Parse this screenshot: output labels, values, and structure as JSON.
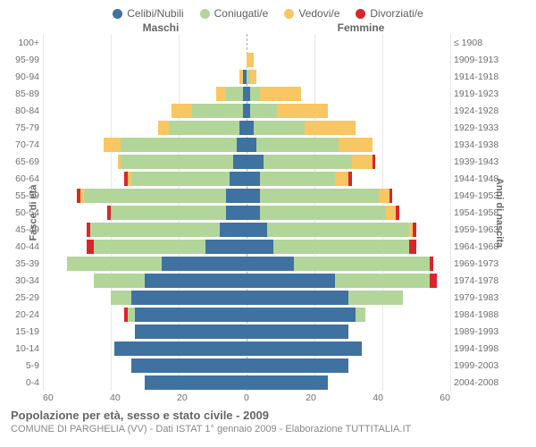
{
  "legend": [
    {
      "label": "Celibi/Nubili",
      "color": "#3f72a0"
    },
    {
      "label": "Coniugati/e",
      "color": "#b2d69a"
    },
    {
      "label": "Vedovi/e",
      "color": "#f8c662"
    },
    {
      "label": "Divorziati/e",
      "color": "#d9262b"
    }
  ],
  "header_male": "Maschi",
  "header_female": "Femmine",
  "y_left_title": "Fasce di età",
  "y_right_title": "Anni di nascita",
  "x_ticks": [
    "60",
    "40",
    "20",
    "0",
    "20",
    "40",
    "60"
  ],
  "scale": {
    "max": 60,
    "px": 228
  },
  "title": "Popolazione per età, sesso e stato civile - 2009",
  "subtitle": "COMUNE DI PARGHELIA (VV) - Dati ISTAT 1° gennaio 2009 - Elaborazione TUTTITALIA.IT",
  "age_bands": [
    "100+",
    "95-99",
    "90-94",
    "85-89",
    "80-84",
    "75-79",
    "70-74",
    "65-69",
    "60-64",
    "55-59",
    "50-54",
    "45-49",
    "40-44",
    "35-39",
    "30-34",
    "25-29",
    "20-24",
    "15-19",
    "10-14",
    "5-9",
    "0-4"
  ],
  "birth_bands": [
    "≤ 1908",
    "1909-1913",
    "1914-1918",
    "1919-1923",
    "1924-1928",
    "1929-1933",
    "1934-1938",
    "1939-1943",
    "1944-1948",
    "1949-1953",
    "1954-1958",
    "1959-1963",
    "1964-1968",
    "1969-1973",
    "1974-1978",
    "1979-1983",
    "1984-1988",
    "1989-1993",
    "1994-1998",
    "1999-2003",
    "2004-2008"
  ],
  "male": [
    {
      "single": 0,
      "married": 0,
      "widowed": 0,
      "divorced": 0
    },
    {
      "single": 0,
      "married": 0,
      "widowed": 0,
      "divorced": 0
    },
    {
      "single": 1,
      "married": 0,
      "widowed": 1,
      "divorced": 0
    },
    {
      "single": 1,
      "married": 5,
      "widowed": 3,
      "divorced": 0
    },
    {
      "single": 1,
      "married": 15,
      "widowed": 6,
      "divorced": 0
    },
    {
      "single": 2,
      "married": 21,
      "widowed": 3,
      "divorced": 0
    },
    {
      "single": 3,
      "married": 34,
      "widowed": 5,
      "divorced": 0
    },
    {
      "single": 4,
      "married": 33,
      "widowed": 1,
      "divorced": 0
    },
    {
      "single": 5,
      "married": 29,
      "widowed": 1,
      "divorced": 1
    },
    {
      "single": 6,
      "married": 42,
      "widowed": 1,
      "divorced": 1
    },
    {
      "single": 6,
      "married": 34,
      "widowed": 0,
      "divorced": 1
    },
    {
      "single": 8,
      "married": 38,
      "widowed": 0,
      "divorced": 1
    },
    {
      "single": 12,
      "married": 33,
      "widowed": 0,
      "divorced": 2
    },
    {
      "single": 25,
      "married": 28,
      "widowed": 0,
      "divorced": 0
    },
    {
      "single": 30,
      "married": 15,
      "widowed": 0,
      "divorced": 0
    },
    {
      "single": 34,
      "married": 6,
      "widowed": 0,
      "divorced": 0
    },
    {
      "single": 33,
      "married": 2,
      "widowed": 0,
      "divorced": 1
    },
    {
      "single": 33,
      "married": 0,
      "widowed": 0,
      "divorced": 0
    },
    {
      "single": 39,
      "married": 0,
      "widowed": 0,
      "divorced": 0
    },
    {
      "single": 34,
      "married": 0,
      "widowed": 0,
      "divorced": 0
    },
    {
      "single": 30,
      "married": 0,
      "widowed": 0,
      "divorced": 0
    }
  ],
  "female": [
    {
      "single": 0,
      "married": 0,
      "widowed": 0,
      "divorced": 0
    },
    {
      "single": 0,
      "married": 0,
      "widowed": 2,
      "divorced": 0
    },
    {
      "single": 0,
      "married": 1,
      "widowed": 2,
      "divorced": 0
    },
    {
      "single": 1,
      "married": 3,
      "widowed": 12,
      "divorced": 0
    },
    {
      "single": 1,
      "married": 8,
      "widowed": 15,
      "divorced": 0
    },
    {
      "single": 2,
      "married": 15,
      "widowed": 15,
      "divorced": 0
    },
    {
      "single": 3,
      "married": 24,
      "widowed": 10,
      "divorced": 0
    },
    {
      "single": 5,
      "married": 26,
      "widowed": 6,
      "divorced": 1
    },
    {
      "single": 4,
      "married": 22,
      "widowed": 4,
      "divorced": 1
    },
    {
      "single": 4,
      "married": 35,
      "widowed": 3,
      "divorced": 1
    },
    {
      "single": 4,
      "married": 37,
      "widowed": 3,
      "divorced": 1
    },
    {
      "single": 6,
      "married": 42,
      "widowed": 1,
      "divorced": 1
    },
    {
      "single": 8,
      "married": 40,
      "widowed": 0,
      "divorced": 2
    },
    {
      "single": 14,
      "married": 40,
      "widowed": 0,
      "divorced": 1
    },
    {
      "single": 26,
      "married": 28,
      "widowed": 0,
      "divorced": 2
    },
    {
      "single": 30,
      "married": 16,
      "widowed": 0,
      "divorced": 0
    },
    {
      "single": 32,
      "married": 3,
      "widowed": 0,
      "divorced": 0
    },
    {
      "single": 30,
      "married": 0,
      "widowed": 0,
      "divorced": 0
    },
    {
      "single": 34,
      "married": 0,
      "widowed": 0,
      "divorced": 0
    },
    {
      "single": 30,
      "married": 0,
      "widowed": 0,
      "divorced": 0
    },
    {
      "single": 24,
      "married": 0,
      "widowed": 0,
      "divorced": 0
    }
  ],
  "colors": {
    "single": "#3f72a0",
    "married": "#b2d69a",
    "widowed": "#f8c662",
    "divorced": "#d9262b"
  }
}
